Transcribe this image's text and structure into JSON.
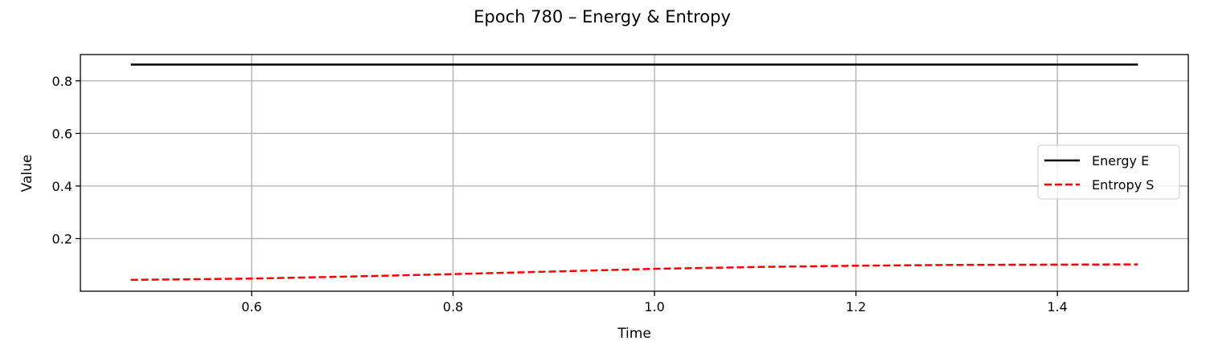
{
  "chart_data": {
    "type": "line",
    "title": "Epoch 780 – Energy & Entropy",
    "xlabel": "Time",
    "ylabel": "Value",
    "xlim": [
      0.43,
      1.53
    ],
    "ylim": [
      0.0,
      0.9
    ],
    "xticks": [
      0.6,
      0.8,
      1.0,
      1.2,
      1.4
    ],
    "yticks": [
      0.2,
      0.4,
      0.6,
      0.8
    ],
    "xtick_labels": [
      "0.6",
      "0.8",
      "1.0",
      "1.2",
      "1.4"
    ],
    "ytick_labels": [
      "0.2",
      "0.4",
      "0.6",
      "0.8"
    ],
    "grid": true,
    "legend_position": "center-right",
    "series": [
      {
        "name": "Energy E",
        "color": "#000000",
        "style": "solid",
        "x": [
          0.48,
          0.6,
          0.8,
          1.0,
          1.2,
          1.4,
          1.48
        ],
        "y": [
          0.862,
          0.862,
          0.862,
          0.862,
          0.862,
          0.862,
          0.862
        ]
      },
      {
        "name": "Entropy S",
        "color": "#ff0000",
        "style": "dashed",
        "x": [
          0.48,
          0.6,
          0.7,
          0.8,
          0.9,
          1.0,
          1.1,
          1.2,
          1.3,
          1.4,
          1.48
        ],
        "y": [
          0.043,
          0.048,
          0.056,
          0.065,
          0.075,
          0.085,
          0.092,
          0.097,
          0.1,
          0.101,
          0.102
        ]
      }
    ]
  }
}
